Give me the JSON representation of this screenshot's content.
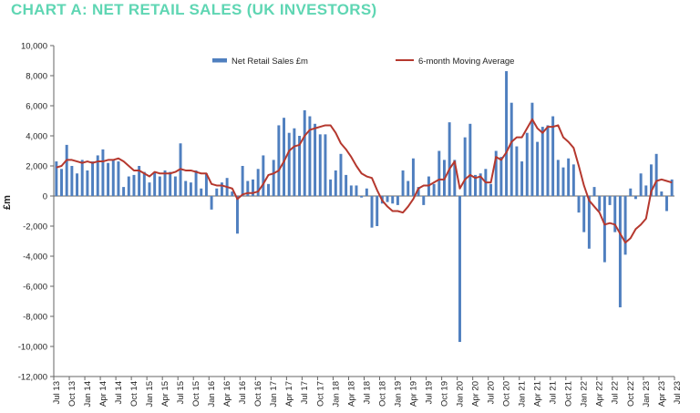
{
  "title": "CHART A:  NET RETAIL SALES (UK INVESTORS)",
  "colors": {
    "title": "#5fd6b3",
    "bars": "#4f7fbf",
    "line": "#b5382e",
    "axis": "#666666"
  },
  "chart_data": {
    "type": "bar",
    "title": "CHART A:  NET RETAIL SALES (UK INVESTORS)",
    "ylabel": "£m",
    "xlabel": "",
    "ylim": [
      -12000,
      10000
    ],
    "yticks": [
      10000,
      8000,
      6000,
      4000,
      2000,
      0,
      -2000,
      -4000,
      -6000,
      -8000,
      -10000,
      -12000
    ],
    "ytick_labels": [
      "10,000",
      "8,000",
      "6,000",
      "4,000",
      "2,000",
      "0",
      "-2,000",
      "-4,000",
      "-6,000",
      "-8,000",
      "-10,000",
      "-12,000"
    ],
    "grid": false,
    "legend_position": "top",
    "x_labels": [
      "Jul 13",
      "Oct 13",
      "Jan 14",
      "Apr 14",
      "Jul 14",
      "Oct 14",
      "Jan 15",
      "Apr 15",
      "Jul 15",
      "Oct 15",
      "Jan 16",
      "Apr 16",
      "Jul 16",
      "Oct 16",
      "Jan 17",
      "Apr 17",
      "Jul 17",
      "Oct 17",
      "Jan 18",
      "Apr 18",
      "Jul 18",
      "Oct 18",
      "Jan 19",
      "Apr 19",
      "Jul 19",
      "Oct 19",
      "Jan 20",
      "Apr 20",
      "Jul 20",
      "Oct 20",
      "Jan 21",
      "Apr 21",
      "Jul 21",
      "Oct 21",
      "Jan 22",
      "Apr 22",
      "Jul 22",
      "Oct 22",
      "Jan 23",
      "Apr 23",
      "Jul 23"
    ],
    "x_label_every": 3,
    "series": [
      {
        "name": "Net Retail Sales £m",
        "kind": "bar",
        "values": [
          2300,
          1800,
          3400,
          2000,
          1500,
          2400,
          1700,
          2300,
          2700,
          3100,
          2200,
          2400,
          2300,
          600,
          1300,
          1400,
          2000,
          1600,
          900,
          1600,
          1300,
          1700,
          1600,
          1300,
          3500,
          1000,
          900,
          1700,
          500,
          1500,
          -900,
          500,
          900,
          1200,
          300,
          -2500,
          2000,
          1000,
          1100,
          1800,
          2700,
          800,
          2400,
          4700,
          5200,
          4200,
          4500,
          4000,
          5700,
          5300,
          4800,
          4100,
          4100,
          1100,
          1700,
          2800,
          1400,
          700,
          700,
          -100,
          500,
          -2100,
          -2000,
          -500,
          -400,
          -500,
          -600,
          1700,
          1000,
          2500,
          600,
          -600,
          1300,
          800,
          3000,
          2400,
          4900,
          2400,
          -9700,
          3900,
          4800,
          1400,
          1500,
          1800,
          800,
          3000,
          2600,
          8300,
          6200,
          3300,
          2300,
          4200,
          6200,
          3600,
          4600,
          4700,
          5300,
          2400,
          1900,
          2500,
          2100,
          -1100,
          -2400,
          -3500,
          600,
          -1000,
          -4400,
          -600,
          -2400,
          -7400,
          -3900,
          500,
          -200,
          1500,
          700,
          2100,
          2800,
          300,
          -1000,
          1100
        ]
      },
      {
        "name": "6-month Moving Average",
        "kind": "line",
        "values": [
          1900,
          2000,
          2400,
          2400,
          2300,
          2200,
          2300,
          2200,
          2300,
          2300,
          2400,
          2400,
          2500,
          2300,
          2000,
          1700,
          1700,
          1500,
          1300,
          1600,
          1500,
          1500,
          1500,
          1600,
          1800,
          1700,
          1700,
          1600,
          1500,
          1500,
          800,
          700,
          700,
          600,
          500,
          -200,
          100,
          200,
          200,
          300,
          800,
          1400,
          1500,
          1700,
          2300,
          3000,
          3300,
          3400,
          4000,
          4400,
          4500,
          4600,
          4700,
          4700,
          4200,
          3500,
          3100,
          2600,
          2000,
          1500,
          1300,
          1200,
          400,
          -300,
          -700,
          -1000,
          -1000,
          -1100,
          -700,
          -200,
          500,
          700,
          700,
          900,
          1100,
          1100,
          1800,
          2300,
          500,
          1100,
          1400,
          1200,
          1300,
          900,
          900,
          2600,
          2400,
          2900,
          3600,
          3900,
          3900,
          4500,
          5100,
          4500,
          4200,
          4600,
          4600,
          4700,
          3900,
          3600,
          3200,
          2000,
          700,
          -300,
          -700,
          -1100,
          -1900,
          -1800,
          -1900,
          -2500,
          -3100,
          -2800,
          -2200,
          -1900,
          -1500,
          300,
          1000,
          1100,
          1000,
          900
        ]
      }
    ]
  }
}
